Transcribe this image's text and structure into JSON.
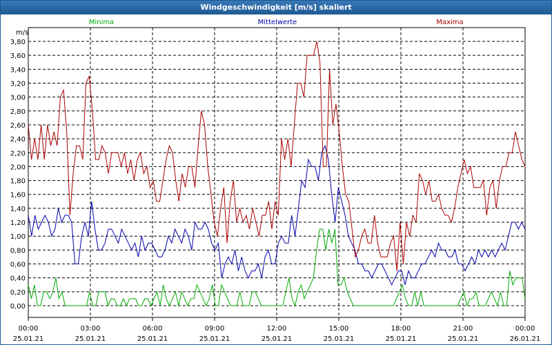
{
  "window": {
    "title": "Windgeschwindigkeit [m/s] skaliert"
  },
  "colors": {
    "titlebar": "#1e5a92",
    "grid": "#000000",
    "minima": "#00aa00",
    "mittel": "#0000aa",
    "maxima": "#aa0000"
  },
  "chart_data": {
    "type": "line",
    "title": "Windgeschwindigkeit [m/s] skaliert",
    "ylabel": "m/s",
    "ylim": [
      0,
      3.9
    ],
    "yticks": [
      "0,00",
      "0,20",
      "0,40",
      "0,60",
      "0,80",
      "1,00",
      "1,20",
      "1,40",
      "1,60",
      "1,80",
      "2,00",
      "2,20",
      "2,40",
      "2,60",
      "2,80",
      "3,00",
      "3,20",
      "3,40",
      "3,60",
      "3,80"
    ],
    "ytick_values": [
      0,
      0.2,
      0.4,
      0.6,
      0.8,
      1.0,
      1.2,
      1.4,
      1.6,
      1.8,
      2.0,
      2.2,
      2.4,
      2.6,
      2.8,
      3.0,
      3.2,
      3.4,
      3.6,
      3.8
    ],
    "xlim_hours": [
      0,
      24
    ],
    "xticks": [
      {
        "time": "00:00",
        "date": "25.01.21"
      },
      {
        "time": "03:00",
        "date": "25.01.21"
      },
      {
        "time": "06:00",
        "date": "25.01.21"
      },
      {
        "time": "09:00",
        "date": "25.01.21"
      },
      {
        "time": "12:00",
        "date": "25.01.21"
      },
      {
        "time": "15:00",
        "date": "25.01.21"
      },
      {
        "time": "18:00",
        "date": "25.01.21"
      },
      {
        "time": "21:00",
        "date": "25.01.21"
      },
      {
        "time": "00:00",
        "date": "26.01.21"
      }
    ],
    "grid": true,
    "legend_position": "top",
    "series": [
      {
        "name": "Minima",
        "color": "#00aa00",
        "values": [
          0.3,
          0.1,
          0.3,
          0,
          0,
          0.2,
          0.2,
          0.1,
          0.2,
          0.4,
          0.1,
          0.2,
          0,
          0,
          0,
          0,
          0,
          0,
          0,
          0,
          0.2,
          0,
          0,
          0.2,
          0.2,
          0.2,
          0,
          0.1,
          0.1,
          0,
          0,
          0.1,
          0,
          0.1,
          0.1,
          0.1,
          0,
          0,
          0.1,
          0.1,
          0,
          0.1,
          0.2,
          0,
          0.3,
          0.1,
          0,
          0.1,
          0.2,
          0,
          0.2,
          0.1,
          0,
          0.1,
          0.1,
          0.3,
          0.2,
          0.1,
          0,
          0.1,
          0.3,
          0,
          0,
          0.3,
          0.2,
          0.1,
          0,
          0,
          0,
          0.2,
          0,
          0,
          0,
          0.2,
          0.2,
          0.1,
          0,
          0,
          0,
          0,
          0,
          0,
          0,
          0,
          0.2,
          0.4,
          0.1,
          0,
          0.2,
          0.3,
          0.1,
          0.2,
          0.3,
          0.4,
          0.8,
          1.1,
          1.1,
          0.8,
          1.1,
          0.9,
          1.1,
          0.3,
          0.3,
          0.4,
          0.2,
          0.1,
          0,
          0,
          0,
          0,
          0,
          0,
          0,
          0,
          0,
          0,
          0,
          0,
          0,
          0,
          0.1,
          0.2,
          0.3,
          0.1,
          0,
          0,
          0.2,
          0,
          0.2,
          0,
          0,
          0,
          0,
          0,
          0,
          0,
          0,
          0,
          0,
          0,
          0,
          0.1,
          0.2,
          0,
          0.1,
          0.1,
          0.2,
          0,
          0,
          0,
          0.1,
          0.2,
          0.1,
          0,
          0.2,
          0,
          0,
          0.5,
          0.3,
          0.4,
          0.4,
          0.4,
          0.1
        ]
      },
      {
        "name": "Mittelwerte",
        "color": "#0000aa",
        "values": [
          1.3,
          1.0,
          1.3,
          1.1,
          1.2,
          1.3,
          1.2,
          1.0,
          1.1,
          1.4,
          1.2,
          1.3,
          1.3,
          1.2,
          0.6,
          0.6,
          1.0,
          1.2,
          1.0,
          1.5,
          1.1,
          0.8,
          0.8,
          0.9,
          1.1,
          1.1,
          1.0,
          0.9,
          1.1,
          1.0,
          0.9,
          0.8,
          0.9,
          0.7,
          1.0,
          0.8,
          0.9,
          0.9,
          0.8,
          0.7,
          0.7,
          0.8,
          1.0,
          0.9,
          1.1,
          1.0,
          0.9,
          1.1,
          1.0,
          0.8,
          1.2,
          1.1,
          1.1,
          1.2,
          1.1,
          0.9,
          0.8,
          0.9,
          0.4,
          0.6,
          0.7,
          0.6,
          0.8,
          0.5,
          0.7,
          0.5,
          0.4,
          0.5,
          0.5,
          0.6,
          0.4,
          0.7,
          0.8,
          0.6,
          0.6,
          0.9,
          1.0,
          0.9,
          0.9,
          1.3,
          1.0,
          1.4,
          1.8,
          1.7,
          2.1,
          2.0,
          2.0,
          1.8,
          2.2,
          2.3,
          2.1,
          1.6,
          1.2,
          1.7,
          1.5,
          1.3,
          1.0,
          0.9,
          0.8,
          0.6,
          0.6,
          0.5,
          0.5,
          0.4,
          0.5,
          0.6,
          0.6,
          0.5,
          0.4,
          0.3,
          0.4,
          0.5,
          0.5,
          0.3,
          0.5,
          0.4,
          0.4,
          0.5,
          0.6,
          0.6,
          0.7,
          0.8,
          0.7,
          0.9,
          0.8,
          0.8,
          0.7,
          0.7,
          0.8,
          0.6,
          0.6,
          0.5,
          0.6,
          0.7,
          0.6,
          0.8,
          0.7,
          0.8,
          0.7,
          0.8,
          0.7,
          0.8,
          0.9,
          0.8,
          1.0,
          1.2,
          1.2,
          1.1,
          1.2,
          1.1
        ]
      },
      {
        "name": "Maxima",
        "color": "#aa0000",
        "values": [
          2.6,
          2.1,
          2.4,
          2.1,
          2.6,
          2.1,
          2.6,
          2.3,
          2.5,
          2.3,
          3.0,
          3.1,
          2.5,
          1.3,
          1.9,
          2.3,
          2.3,
          2.1,
          3.2,
          3.3,
          2.8,
          2.1,
          2.1,
          2.3,
          2.2,
          1.9,
          2.2,
          2.2,
          2.2,
          2.0,
          2.2,
          1.9,
          2.1,
          1.8,
          2.1,
          2.2,
          1.9,
          2.0,
          1.7,
          1.8,
          1.5,
          1.5,
          1.8,
          2.1,
          2.3,
          2.2,
          1.8,
          1.5,
          1.9,
          1.7,
          2.0,
          2.0,
          1.7,
          2.3,
          2.8,
          2.6,
          2.0,
          1.6,
          1.2,
          1.0,
          1.4,
          1.7,
          0.9,
          1.5,
          1.8,
          1.2,
          1.4,
          1.2,
          1.3,
          1.1,
          1.4,
          1.2,
          1.0,
          1.3,
          1.3,
          1.5,
          1.1,
          1.5,
          1.3,
          2.4,
          2.1,
          2.4,
          2.0,
          2.6,
          3.2,
          3.2,
          3.0,
          3.6,
          3.6,
          3.6,
          3.8,
          3.5,
          2.0,
          2.0,
          3.4,
          2.6,
          2.9,
          2.5,
          2.0,
          1.6,
          1.5,
          1.1,
          0.7,
          0.8,
          1.0,
          1.1,
          0.9,
          0.9,
          1.3,
          0.9,
          0.7,
          0.7,
          0.7,
          0.9,
          1.0,
          0.5,
          1.2,
          0.6,
          1.2,
          1.0,
          1.3,
          1.2,
          1.9,
          1.8,
          1.6,
          1.8,
          1.5,
          1.5,
          1.6,
          1.4,
          1.3,
          1.3,
          1.2,
          1.4,
          1.7,
          1.9,
          2.1,
          1.9,
          2.0,
          1.7,
          1.7,
          1.7,
          1.8,
          1.3,
          1.7,
          1.8,
          1.4,
          1.8,
          2.0,
          2.0,
          2.2,
          2.2,
          2.5,
          2.3,
          2.1,
          2.0
        ]
      }
    ]
  }
}
